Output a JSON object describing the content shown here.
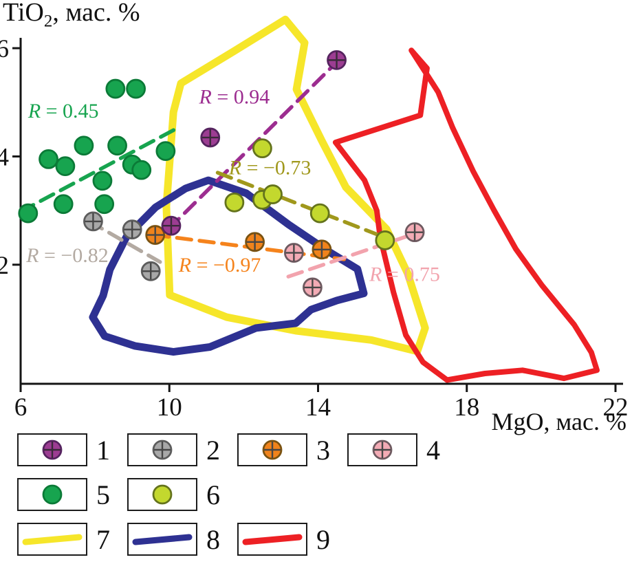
{
  "axes": {
    "y_title_prefix": "TiO",
    "y_title_sub": "2",
    "y_title_suffix": ", мас. %",
    "x_title": "MgO, мас. %"
  },
  "chart_data": {
    "type": "scatter",
    "title": "",
    "xlabel": "MgO, мас. %",
    "ylabel": "TiO2, мас. %",
    "xlim": [
      6,
      22
    ],
    "ylim": [
      -0.2,
      6.6
    ],
    "x_ticks": [
      "6",
      "10",
      "14",
      "18",
      "22"
    ],
    "y_ticks": [
      "2",
      "4",
      "6"
    ],
    "grid": false,
    "legend_position": "bottom",
    "series": [
      {
        "id": "5",
        "name": "green-filled",
        "marker": "circle",
        "fill": "#17a44f",
        "stroke": "#0b7a37",
        "points": [
          [
            6.2,
            2.95
          ],
          [
            6.75,
            3.95
          ],
          [
            7.2,
            3.82
          ],
          [
            7.15,
            3.12
          ],
          [
            7.7,
            4.2
          ],
          [
            8.2,
            3.55
          ],
          [
            8.25,
            3.12
          ],
          [
            8.55,
            5.25
          ],
          [
            9.1,
            5.25
          ],
          [
            8.6,
            4.2
          ],
          [
            9.0,
            3.85
          ],
          [
            9.25,
            3.75
          ],
          [
            9.9,
            4.1
          ]
        ]
      },
      {
        "id": "6",
        "name": "yellow-green-filled",
        "marker": "circle",
        "fill": "#c3d82e",
        "stroke": "#64731c",
        "points": [
          [
            12.5,
            4.15
          ],
          [
            11.75,
            3.15
          ],
          [
            12.5,
            3.2
          ],
          [
            12.78,
            3.3
          ],
          [
            14.05,
            2.95
          ],
          [
            15.8,
            2.45
          ]
        ]
      },
      {
        "id": "2",
        "name": "grey-crossed",
        "marker": "crossed-circle",
        "fill": "#a8a8a8",
        "stroke": "#5c5c5c",
        "cross": "#474747",
        "points": [
          [
            7.95,
            2.8
          ],
          [
            9.0,
            2.65
          ],
          [
            9.5,
            1.88
          ]
        ]
      },
      {
        "id": "3",
        "name": "orange-crossed",
        "marker": "crossed-circle",
        "fill": "#f0831c",
        "stroke": "#7a5210",
        "cross": "#474747",
        "points": [
          [
            9.62,
            2.55
          ],
          [
            12.3,
            2.42
          ],
          [
            14.1,
            2.28
          ]
        ]
      },
      {
        "id": "4",
        "name": "pink-crossed",
        "marker": "crossed-circle",
        "fill": "#f3abb5",
        "stroke": "#6e5a60",
        "cross": "#474747",
        "points": [
          [
            13.35,
            2.22
          ],
          [
            13.85,
            1.58
          ],
          [
            16.6,
            2.6
          ]
        ]
      },
      {
        "id": "1",
        "name": "purple-crossed",
        "marker": "crossed-circle",
        "fill": "#9c3d92",
        "stroke": "#55235f",
        "cross": "#3a2a3a",
        "points": [
          [
            10.05,
            2.72
          ],
          [
            11.1,
            4.35
          ],
          [
            14.5,
            5.78
          ]
        ]
      }
    ],
    "regressions": [
      {
        "id": "green",
        "label": "R = 0.45",
        "color": "#17a44f",
        "x1": 6.0,
        "y1": 2.98,
        "x2": 10.15,
        "y2": 4.5,
        "lx": 6.2,
        "ly": 4.72
      },
      {
        "id": "magenta",
        "label": "R = 0.94",
        "color": "#9c2d90",
        "x1": 9.98,
        "y1": 2.66,
        "x2": 14.6,
        "y2": 5.81,
        "lx": 10.8,
        "ly": 4.98
      },
      {
        "id": "olive",
        "label": "R = −0.73",
        "color": "#a0981c",
        "x1": 11.3,
        "y1": 3.7,
        "x2": 16.0,
        "y2": 2.45,
        "lx": 11.6,
        "ly": 3.67
      },
      {
        "id": "grey",
        "label": "R = −0.82",
        "color": "#b3aaa2",
        "x1": 7.85,
        "y1": 2.8,
        "x2": 9.75,
        "y2": 2.05,
        "lx": 6.15,
        "ly": 2.05
      },
      {
        "id": "orange",
        "label": "R = −0.97",
        "color": "#f5831c",
        "x1": 9.6,
        "y1": 2.55,
        "x2": 14.7,
        "y2": 2.1,
        "lx": 10.25,
        "ly": 1.87
      },
      {
        "id": "pink",
        "label": "R = 0.75",
        "color": "#f2a3ad",
        "x1": 13.2,
        "y1": 1.78,
        "x2": 16.8,
        "y2": 2.62,
        "lx": 15.38,
        "ly": 1.7
      }
    ],
    "fields": [
      {
        "id": "7",
        "name": "yellow-field",
        "color": "#f6e62a",
        "points": [
          [
            13.12,
            6.53
          ],
          [
            13.64,
            6.1
          ],
          [
            13.42,
            5.24
          ],
          [
            14.1,
            4.29
          ],
          [
            14.75,
            3.43
          ],
          [
            15.84,
            2.66
          ],
          [
            16.41,
            1.84
          ],
          [
            16.88,
            0.83
          ],
          [
            16.67,
            0.4
          ],
          [
            15.43,
            0.61
          ],
          [
            13.4,
            0.78
          ],
          [
            11.55,
            1.03
          ],
          [
            10.01,
            1.44
          ],
          [
            9.92,
            3.08
          ],
          [
            10.11,
            4.82
          ],
          [
            10.31,
            5.35
          ],
          [
            11.75,
            5.95
          ]
        ]
      },
      {
        "id": "9",
        "name": "red-field",
        "color": "#ed2024",
        "points": [
          [
            16.51,
            5.96
          ],
          [
            16.93,
            5.63
          ],
          [
            16.75,
            4.76
          ],
          [
            14.47,
            4.26
          ],
          [
            15.25,
            3.56
          ],
          [
            15.58,
            3.0
          ],
          [
            15.67,
            2.51
          ],
          [
            16.03,
            1.49
          ],
          [
            16.36,
            0.7
          ],
          [
            16.82,
            0.2
          ],
          [
            17.47,
            -0.13
          ],
          [
            18.49,
            -0.01
          ],
          [
            19.5,
            0.05
          ],
          [
            20.61,
            -0.1
          ],
          [
            21.5,
            0.05
          ],
          [
            21.35,
            0.38
          ],
          [
            20.89,
            0.89
          ],
          [
            20.02,
            1.62
          ],
          [
            19.32,
            2.29
          ],
          [
            18.73,
            3.01
          ],
          [
            18.17,
            3.73
          ],
          [
            17.62,
            4.53
          ],
          [
            17.23,
            5.19
          ]
        ]
      },
      {
        "id": "8",
        "name": "blue-field",
        "color": "#2e3192",
        "points": [
          [
            11.05,
            3.56
          ],
          [
            12.07,
            3.32
          ],
          [
            13.21,
            2.74
          ],
          [
            14.29,
            2.24
          ],
          [
            15.06,
            1.92
          ],
          [
            15.23,
            1.47
          ],
          [
            14.51,
            1.34
          ],
          [
            13.81,
            1.17
          ],
          [
            13.4,
            0.92
          ],
          [
            12.33,
            0.83
          ],
          [
            11.09,
            0.48
          ],
          [
            10.11,
            0.39
          ],
          [
            9.07,
            0.5
          ],
          [
            8.26,
            0.68
          ],
          [
            7.94,
            1.03
          ],
          [
            8.22,
            1.43
          ],
          [
            8.4,
            1.91
          ],
          [
            8.85,
            2.52
          ],
          [
            9.63,
            3.06
          ],
          [
            10.44,
            3.41
          ]
        ]
      }
    ]
  },
  "legend": {
    "rows": [
      [
        {
          "label": "1",
          "symbol": "marker",
          "series_index": 5
        },
        {
          "label": "2",
          "symbol": "marker",
          "series_index": 2
        },
        {
          "label": "3",
          "symbol": "marker",
          "series_index": 3
        },
        {
          "label": "4",
          "symbol": "marker",
          "series_index": 4
        }
      ],
      [
        {
          "label": "5",
          "symbol": "marker",
          "series_index": 0
        },
        {
          "label": "6",
          "symbol": "marker",
          "series_index": 1
        }
      ],
      [
        {
          "label": "7",
          "symbol": "line",
          "field_index": 0
        },
        {
          "label": "8",
          "symbol": "line",
          "field_index": 2
        },
        {
          "label": "9",
          "symbol": "line",
          "field_index": 1
        }
      ]
    ]
  }
}
